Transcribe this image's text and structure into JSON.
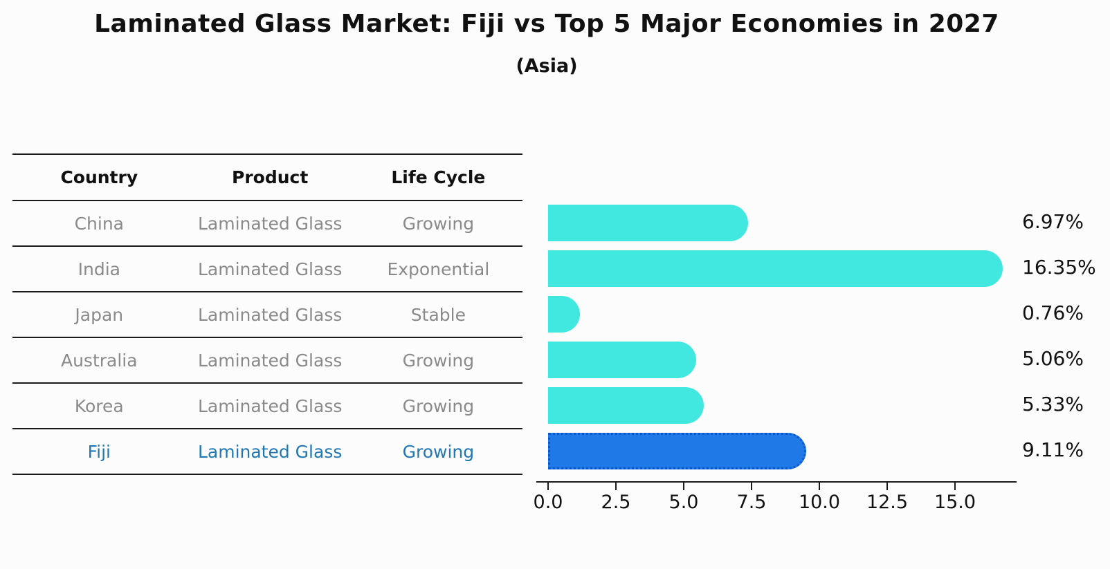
{
  "figure": {
    "title": "Laminated Glass Market: Fiji vs Top 5 Major Economies in 2027",
    "subtitle": "(Asia)"
  },
  "table": {
    "headers": [
      "Country",
      "Product",
      "Life Cycle"
    ],
    "rows": [
      {
        "country": "China",
        "product": "Laminated Glass",
        "life_cycle": "Growing",
        "highlight": false
      },
      {
        "country": "India",
        "product": "Laminated Glass",
        "life_cycle": "Exponential",
        "highlight": false
      },
      {
        "country": "Japan",
        "product": "Laminated Glass",
        "life_cycle": "Stable",
        "highlight": false
      },
      {
        "country": "Australia",
        "product": "Laminated Glass",
        "life_cycle": "Growing",
        "highlight": false
      },
      {
        "country": "Korea",
        "product": "Laminated Glass",
        "life_cycle": "Growing",
        "highlight": false
      },
      {
        "country": "Fiji",
        "product": "Laminated Glass",
        "life_cycle": "Growing",
        "highlight": true
      }
    ]
  },
  "chart_data": {
    "type": "bar",
    "orientation": "horizontal",
    "title": "Laminated Glass Market: Fiji vs Top 5 Major Economies in 2027",
    "subtitle": "(Asia)",
    "categories": [
      "China",
      "India",
      "Japan",
      "Australia",
      "Korea",
      "Fiji"
    ],
    "values": [
      6.97,
      16.35,
      0.76,
      5.06,
      5.33,
      9.11
    ],
    "value_labels": [
      "6.97%",
      "16.35%",
      "0.76%",
      "5.06%",
      "5.33%",
      "9.11%"
    ],
    "x_ticks": [
      0.0,
      2.5,
      5.0,
      7.5,
      10.0,
      12.5,
      15.0
    ],
    "x_tick_labels": [
      "0.0",
      "2.5",
      "5.0",
      "7.5",
      "10.0",
      "12.5",
      "15.0"
    ],
    "xlim": [
      0,
      17.3
    ],
    "grid": false,
    "legend": null,
    "highlight_category": "Fiji"
  },
  "colors": {
    "bar_default": "#41e8e0",
    "bar_highlight": "#1f7ae8",
    "bar_highlight_border": "#0b56cc",
    "highlight_text": "#1f77b4",
    "row_text": "#8a8a8a",
    "text": "#111111",
    "background": "#fcfcfc"
  }
}
